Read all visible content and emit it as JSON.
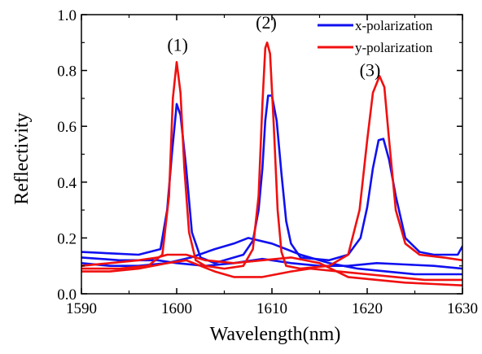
{
  "chart_data": {
    "type": "line",
    "title": "",
    "xlabel": "Wavelength(nm)",
    "ylabel": "Reflectivity",
    "xlim": [
      1590,
      1630
    ],
    "ylim": [
      0.0,
      1.0
    ],
    "xticks": [
      "1590",
      "1600",
      "1610",
      "1620",
      "1630"
    ],
    "yticks": [
      "0.0",
      "0.2",
      "0.4",
      "0.6",
      "0.8",
      "1.0"
    ],
    "grid": false,
    "legend_position": "top-right",
    "annotations": [
      {
        "text": "(1)",
        "x": 1600.1,
        "y": 0.87
      },
      {
        "text": "(2)",
        "x": 1609.4,
        "y": 0.95
      },
      {
        "text": "(3)",
        "x": 1620.3,
        "y": 0.78
      }
    ],
    "series": [
      {
        "name": "x-polarization",
        "color": "#1010f0",
        "lines": [
          {
            "x": [
              1590,
              1593,
              1596,
              1598.3,
              1599,
              1599.5,
              1600,
              1600.4,
              1601,
              1601.6,
              1602.5,
              1604,
              1607,
              1608,
              1608.6,
              1609,
              1609.3,
              1609.6,
              1610,
              1610.5,
              1611,
              1611.5,
              1612,
              1613,
              1616,
              1618,
              1619.3,
              1620,
              1620.6,
              1621.2,
              1621.7,
              1622.3,
              1623,
              1624,
              1625.5,
              1627,
              1629.5,
              1630
            ],
            "y": [
              0.15,
              0.145,
              0.14,
              0.16,
              0.3,
              0.5,
              0.68,
              0.64,
              0.45,
              0.22,
              0.13,
              0.11,
              0.14,
              0.19,
              0.3,
              0.45,
              0.62,
              0.71,
              0.71,
              0.62,
              0.43,
              0.26,
              0.18,
              0.13,
              0.12,
              0.14,
              0.2,
              0.31,
              0.45,
              0.55,
              0.555,
              0.48,
              0.35,
              0.2,
              0.15,
              0.14,
              0.14,
              0.17
            ]
          },
          {
            "x": [
              1590,
              1594,
              1598,
              1600,
              1603,
              1606,
              1609,
              1612,
              1615,
              1618,
              1621,
              1624,
              1627,
              1630
            ],
            "y": [
              0.13,
              0.12,
              0.12,
              0.11,
              0.1,
              0.11,
              0.125,
              0.11,
              0.1,
              0.1,
              0.11,
              0.105,
              0.1,
              0.09
            ]
          },
          {
            "x": [
              1590,
              1593,
              1596,
              1599,
              1601.5,
              1604,
              1606,
              1607.5,
              1610,
              1613,
              1616,
              1619,
              1622,
              1625,
              1630
            ],
            "y": [
              0.11,
              0.1,
              0.1,
              0.11,
              0.13,
              0.16,
              0.18,
              0.2,
              0.18,
              0.14,
              0.11,
              0.09,
              0.08,
              0.07,
              0.07
            ]
          }
        ]
      },
      {
        "name": "y-polarization",
        "color": "#f01010",
        "lines": [
          {
            "x": [
              1590,
              1594,
              1597,
              1598.5,
              1599.2,
              1599.6,
              1600,
              1600.4,
              1600.8,
              1601.3,
              1602,
              1603,
              1605,
              1607,
              1608,
              1608.6,
              1609,
              1609.3,
              1609.5,
              1609.8,
              1610.2,
              1610.6,
              1611,
              1611.5,
              1613,
              1616,
              1618,
              1619.2,
              1620,
              1620.6,
              1621.3,
              1621.8,
              1622.3,
              1623,
              1624,
              1625.5,
              1628,
              1630
            ],
            "y": [
              0.09,
              0.09,
              0.1,
              0.14,
              0.35,
              0.7,
              0.83,
              0.72,
              0.45,
              0.22,
              0.12,
              0.1,
              0.09,
              0.1,
              0.16,
              0.35,
              0.68,
              0.88,
              0.9,
              0.86,
              0.6,
              0.3,
              0.15,
              0.1,
              0.09,
              0.1,
              0.14,
              0.3,
              0.55,
              0.72,
              0.78,
              0.74,
              0.55,
              0.3,
              0.18,
              0.14,
              0.13,
              0.12
            ]
          },
          {
            "x": [
              1590,
              1593,
              1596,
              1598,
              1599,
              1601,
              1603,
              1606,
              1609,
              1612,
              1615,
              1618,
              1621,
              1624,
              1627,
              1630
            ],
            "y": [
              0.1,
              0.11,
              0.12,
              0.13,
              0.14,
              0.14,
              0.12,
              0.11,
              0.12,
              0.13,
              0.11,
              0.06,
              0.05,
              0.04,
              0.035,
              0.03
            ]
          },
          {
            "x": [
              1590,
              1593,
              1596,
              1599,
              1601,
              1602.5,
              1604,
              1606,
              1609,
              1612,
              1614,
              1617,
              1620,
              1623,
              1626,
              1630
            ],
            "y": [
              0.08,
              0.08,
              0.09,
              0.11,
              0.12,
              0.1,
              0.08,
              0.06,
              0.06,
              0.08,
              0.09,
              0.08,
              0.07,
              0.06,
              0.05,
              0.05
            ]
          }
        ]
      }
    ]
  }
}
